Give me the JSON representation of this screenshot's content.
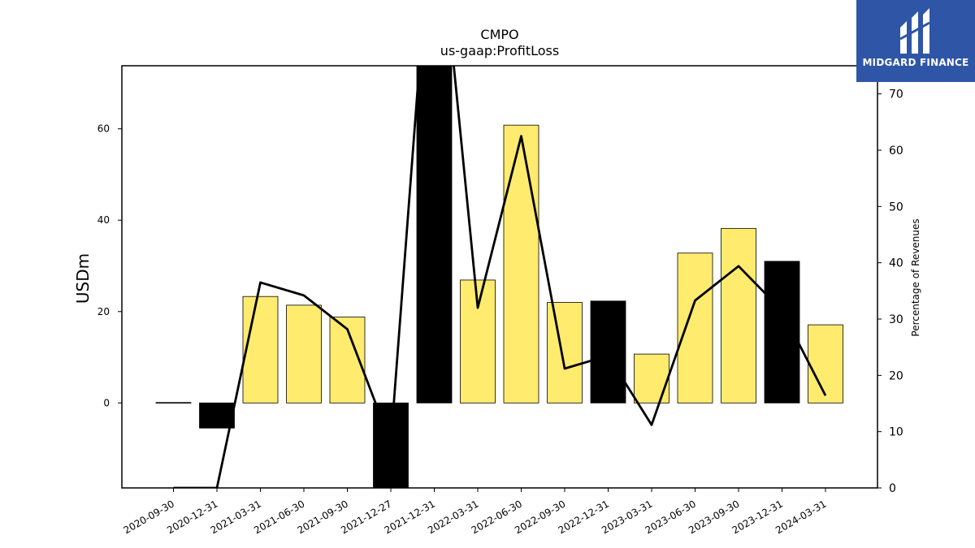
{
  "chart_data": {
    "type": "bar",
    "title": "CMPO",
    "subtitle": "us-gaap:ProfitLoss",
    "ylabel": "USDm",
    "ylabel_right": "Percentage of Revenues",
    "categories": [
      "2020-09-30",
      "2020-12-31",
      "2021-03-31",
      "2021-06-30",
      "2021-09-30",
      "2021-12-27",
      "2021-12-31",
      "2022-03-31",
      "2022-06-30",
      "2022-09-30",
      "2022-12-31",
      "2023-03-31",
      "2023-06-30",
      "2023-09-30",
      "2023-12-31",
      "2024-03-31"
    ],
    "series": [
      {
        "axis": "left",
        "kind": "bar",
        "values": [
          0.1,
          -5.5,
          23.3,
          21.4,
          18.8,
          -19.0,
          75.0,
          26.9,
          60.8,
          22.0,
          22.3,
          10.7,
          32.8,
          38.2,
          31.0,
          17.1
        ],
        "colors": [
          "#000000",
          "#000000",
          "#ffeb6e",
          "#ffeb6e",
          "#ffeb6e",
          "#000000",
          "#000000",
          "#ffeb6e",
          "#ffeb6e",
          "#ffeb6e",
          "#000000",
          "#ffeb6e",
          "#ffeb6e",
          "#ffeb6e",
          "#000000",
          "#ffeb6e"
        ]
      },
      {
        "axis": "right",
        "kind": "line",
        "values": [
          0,
          0,
          36.5,
          34.2,
          28.2,
          8.0,
          110.0,
          32.0,
          62.5,
          21.2,
          23.5,
          11.2,
          33.3,
          39.4,
          31.5,
          16.4
        ],
        "color": "#000000"
      }
    ],
    "ylim": [
      -18.6,
      73.8
    ],
    "yticks": [
      0,
      20,
      40,
      60
    ],
    "ylim_right": [
      0,
      75
    ],
    "yticks_right": [
      0,
      10,
      20,
      30,
      40,
      50,
      60,
      70
    ],
    "grid": false,
    "legend": "none"
  },
  "logo": {
    "text": "MIDGARD FINANCE",
    "background": "#2e55a6"
  }
}
